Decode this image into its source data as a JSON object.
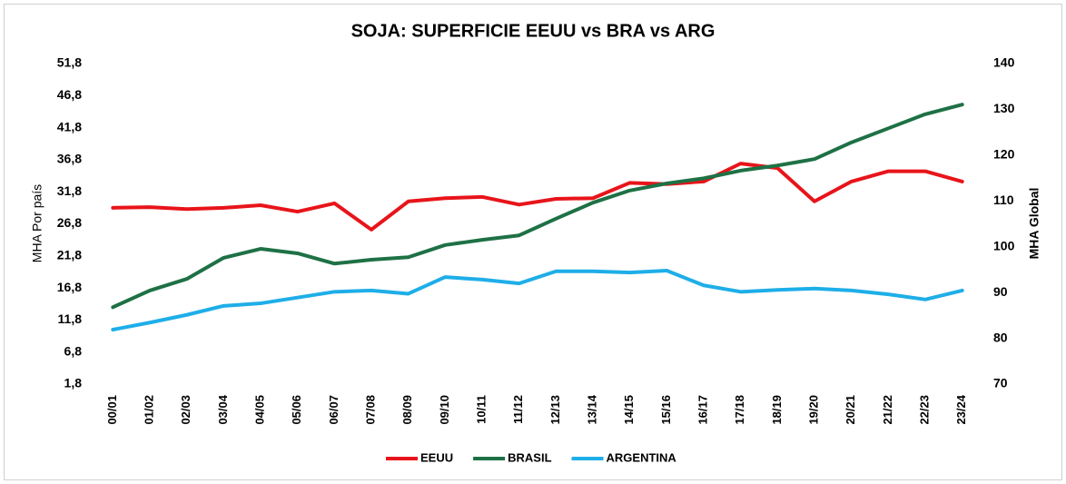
{
  "chart_data": {
    "type": "line",
    "title": "SOJA: SUPERFICIE EEUU vs BRA vs ARG",
    "y_label": "MHA Por país",
    "y2_label": "MHA Global",
    "categories": [
      "00/01",
      "01/02",
      "02/03",
      "03/04",
      "04/05",
      "05/06",
      "06/07",
      "07/08",
      "08/09",
      "09/10",
      "10/11",
      "11/12",
      "12/13",
      "13/14",
      "14/15",
      "15/16",
      "16/17",
      "17/18",
      "18/19",
      "19/20",
      "20/21",
      "21/22",
      "22/23",
      "23/24"
    ],
    "series": [
      {
        "name": "EEUU",
        "color": "#e8141a",
        "values": [
          29.3,
          29.4,
          29.1,
          29.3,
          29.7,
          28.7,
          30.0,
          25.9,
          30.3,
          30.8,
          31.0,
          29.8,
          30.7,
          30.8,
          33.2,
          33.0,
          33.4,
          36.2,
          35.5,
          30.3,
          33.4,
          35.0,
          35.0,
          33.4
        ]
      },
      {
        "name": "BRASIL",
        "color": "#1e7145",
        "values": [
          13.8,
          16.4,
          18.2,
          21.5,
          22.9,
          22.2,
          20.6,
          21.2,
          21.6,
          23.5,
          24.3,
          25.0,
          27.6,
          30.1,
          32.0,
          33.1,
          33.9,
          35.1,
          35.9,
          36.9,
          39.5,
          41.7,
          43.9,
          45.4
        ]
      },
      {
        "name": "ARGENTINA",
        "color": "#1eaee8",
        "values": [
          10.3,
          11.4,
          12.6,
          14.0,
          14.4,
          15.3,
          16.2,
          16.4,
          15.9,
          18.5,
          18.1,
          17.5,
          19.4,
          19.4,
          19.2,
          19.5,
          17.2,
          16.2,
          16.5,
          16.7,
          16.4,
          15.8,
          15.0,
          16.4
        ]
      }
    ],
    "ylim": [
      1.8,
      51.8
    ],
    "yticks": [
      {
        "value": 1.8,
        "label": "1,8"
      },
      {
        "value": 6.8,
        "label": "6,8"
      },
      {
        "value": 11.8,
        "label": "11,8"
      },
      {
        "value": 16.8,
        "label": "16,8"
      },
      {
        "value": 21.8,
        "label": "21,8"
      },
      {
        "value": 26.8,
        "label": "26,8"
      },
      {
        "value": 31.8,
        "label": "31,8"
      },
      {
        "value": 36.8,
        "label": "36,8"
      },
      {
        "value": 41.8,
        "label": "41,8"
      },
      {
        "value": 46.8,
        "label": "46,8"
      },
      {
        "value": 51.8,
        "label": "51,8"
      }
    ],
    "y2lim": [
      70,
      140
    ],
    "y2ticks": [
      70,
      80,
      90,
      100,
      110,
      120,
      130,
      140
    ],
    "legend": "bottom"
  }
}
